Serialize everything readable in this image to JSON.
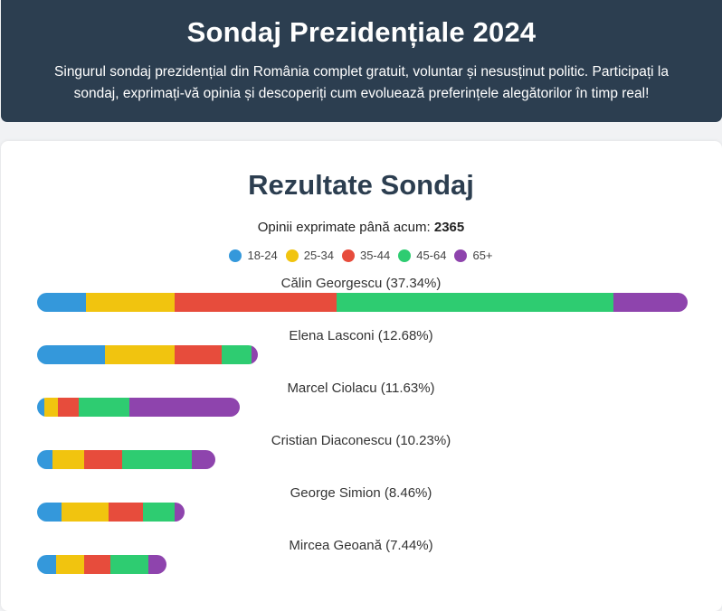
{
  "header": {
    "title": "Sondaj Prezidențiale 2024",
    "description": "Singurul sondaj prezidențial din România complet gratuit, voluntar și nesusținut politic. Participați la sondaj, exprimați-vă opinia și descoperiți cum evoluează preferințele alegătorilor în timp real!"
  },
  "results": {
    "title": "Rezultate Sondaj",
    "total_label": "Opinii exprimate până acum:",
    "total_value": "2365"
  },
  "colors": {
    "18-24": "#3498db",
    "25-34": "#f1c40f",
    "35-44": "#e74c3c",
    "45-64": "#2ecc71",
    "65+": "#8e44ad"
  },
  "chart_data": {
    "type": "bar",
    "orientation": "horizontal",
    "stacked": true,
    "legend": [
      "18-24",
      "25-34",
      "35-44",
      "45-64",
      "65+"
    ],
    "legend_position": "top-center",
    "candidates": [
      {
        "label": "Călin Georgescu (37.34%)",
        "percent": 37.34,
        "segments": [
          2.8,
          5.1,
          9.3,
          15.9,
          4.24
        ]
      },
      {
        "label": "Elena Lasconi (12.68%)",
        "percent": 12.68,
        "segments": [
          3.9,
          4.0,
          2.7,
          1.7,
          0.38
        ]
      },
      {
        "label": "Marcel Ciolacu (11.63%)",
        "percent": 11.63,
        "segments": [
          0.4,
          0.8,
          1.2,
          2.9,
          6.33
        ]
      },
      {
        "label": "Cristian Diaconescu (10.23%)",
        "percent": 10.23,
        "segments": [
          0.9,
          1.8,
          2.2,
          4.0,
          1.33
        ]
      },
      {
        "label": "George Simion (8.46%)",
        "percent": 8.46,
        "segments": [
          1.4,
          2.7,
          2.0,
          1.8,
          0.56
        ]
      },
      {
        "label": "Mircea Geoană (7.44%)",
        "percent": 7.44,
        "segments": [
          1.1,
          1.6,
          1.5,
          2.2,
          1.04
        ]
      }
    ]
  }
}
